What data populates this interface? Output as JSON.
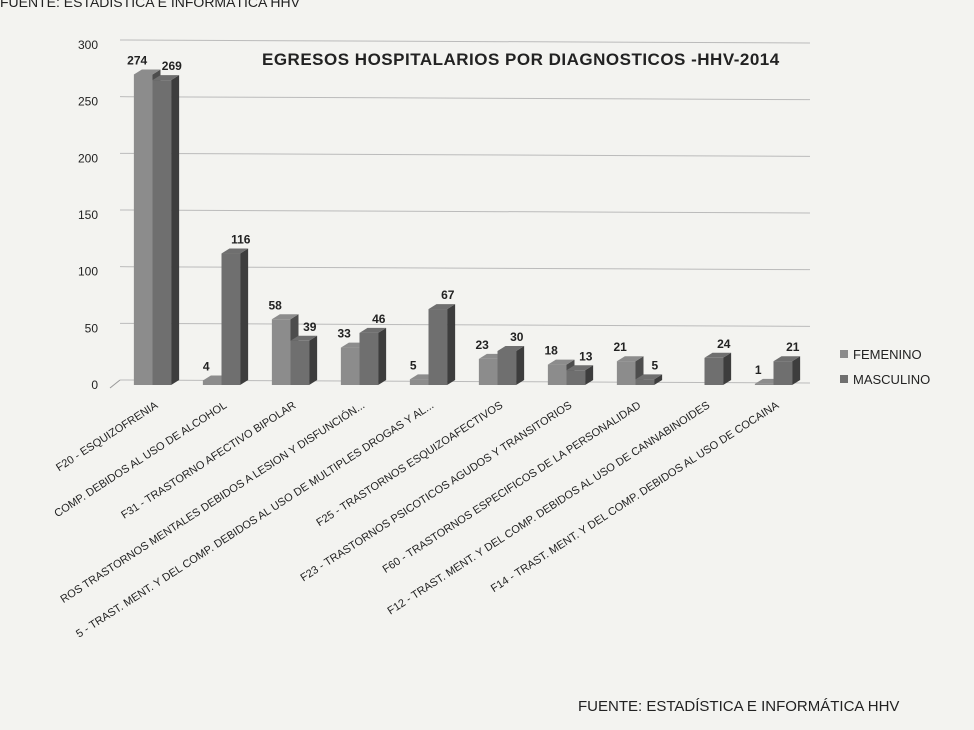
{
  "chart_data": {
    "type": "bar",
    "title": "EGRESOS HOSPITALARIOS POR DIAGNOSTICOS -HHV-2014",
    "source_top": "FUENTE: ESTADÍSTICA E INFORMÁTICA  HHV",
    "source": "FUENTE: ESTADÍSTICA E INFORMÁTICA  HHV",
    "categories": [
      "F20 - ESQUIZOFRENIA",
      "COMP. DEBIDOS AL USO DE ALCOHOL",
      "F31 - TRASTORNO AFECTIVO BIPOLAR",
      "ROS TRASTORNOS MENTALES DEBIDOS A LESION Y DISFUNCIÓN...",
      "5 - TRAST. MENT. Y DEL COMP. DEBIDOS AL USO DE MULTIPLES DROGAS Y AL...",
      "F25 - TRASTORNOS ESQUIZOAFECTIVOS",
      "F23 - TRASTORNOS PSICOTICOS AGUDOS Y TRANSITORIOS",
      "F60 - TRASTORNOS ESPECIFICOS DE LA PERSONALIDAD",
      "F12 - TRAST. MENT. Y DEL COMP. DEBIDOS AL USO DE CANNABINOIDES",
      "F14 - TRAST. MENT. Y DEL COMP. DEBIDOS AL USO DE COCAINA"
    ],
    "series": [
      {
        "name": "FEMENINO",
        "color": "#8c8c8c",
        "values": [
          274,
          4,
          58,
          33,
          5,
          23,
          18,
          21,
          null,
          1
        ]
      },
      {
        "name": "MASCULINO",
        "color": "#6f6f6f",
        "values": [
          269,
          116,
          39,
          46,
          67,
          30,
          13,
          5,
          24,
          21
        ]
      }
    ],
    "ylim": [
      0,
      300
    ],
    "yticks": [
      0,
      50,
      100,
      150,
      200,
      250,
      300
    ],
    "grid": true,
    "legend": "right"
  }
}
